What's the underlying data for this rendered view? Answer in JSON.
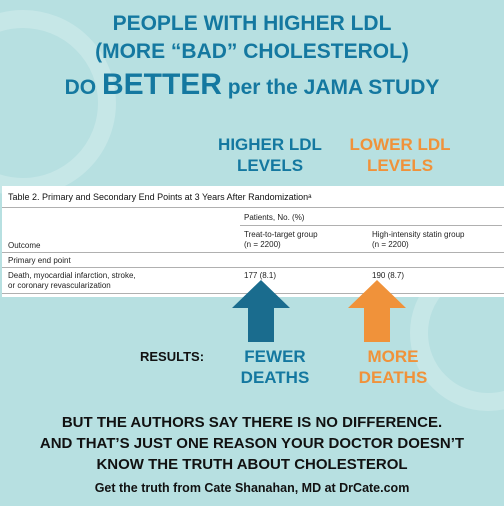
{
  "headline": {
    "line1": "PEOPLE WITH HIGHER LDL",
    "line2": "(MORE “BAD” CHOLESTEROL)",
    "line3_prefix": "DO ",
    "line3_emphasis": "BETTER",
    "line3_suffix": " per the JAMA STUDY"
  },
  "columns": {
    "higher_l1": "HIGHER LDL",
    "higher_l2": "LEVELS",
    "lower_l1": "LOWER LDL",
    "lower_l2": "LEVELS"
  },
  "table": {
    "title": "Table 2. Primary and Secondary End Points at 3 Years After Randomizationᵃ",
    "patients_header": "Patients, No. (%)",
    "outcome_header": "Outcome",
    "group1_l1": "Treat-to-target group",
    "group1_l2": "(n = 2200)",
    "group2_l1": "High-intensity statin group",
    "group2_l2": "(n = 2200)",
    "section": "Primary end point",
    "row_label_l1": "Death, myocardial infarction, stroke,",
    "row_label_l2": "or coronary revascularization",
    "row_g1": "177 (8.1)",
    "row_g2": "190 (8.7)"
  },
  "results": {
    "label": "RESULTS:",
    "fewer_l1": "FEWER",
    "fewer_l2": "DEATHS",
    "more_l1": "MORE",
    "more_l2": "DEATHS"
  },
  "footer": {
    "line1": "BUT THE AUTHORS SAY THERE IS NO DIFFERENCE.",
    "line2": "AND THAT’S JUST ONE REASON YOUR DOCTOR DOESN’T",
    "line3": "KNOW THE TRUTH ABOUT CHOLESTEROL",
    "line4": "Get the truth from Cate Shanahan, MD at DrCate.com"
  },
  "colors": {
    "background": "#b7e0e1",
    "blue": "#1478a0",
    "orange": "#f0923a",
    "arrow_blue": "#1a6c8e"
  }
}
